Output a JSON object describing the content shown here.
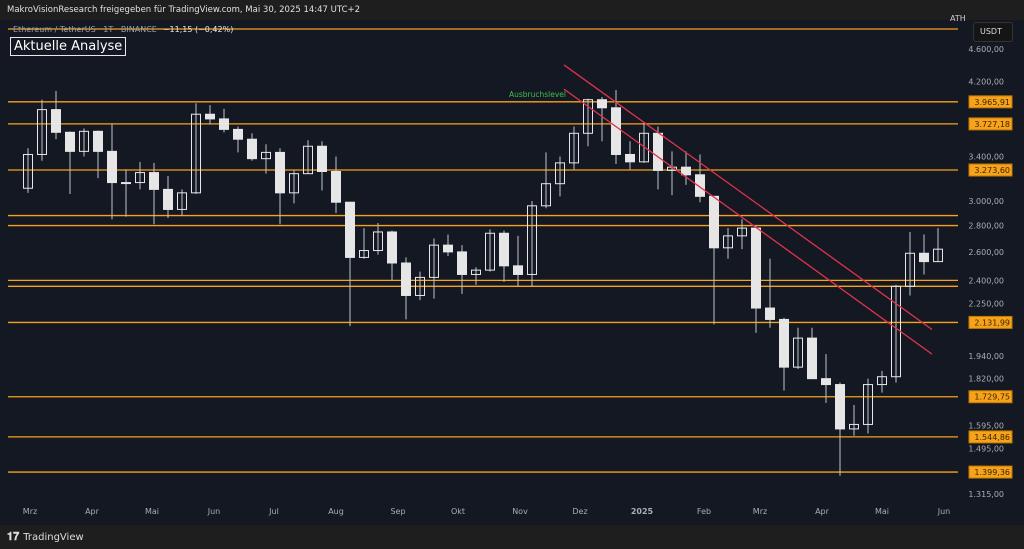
{
  "header": {
    "text": "MakroVisionResearch freigegeben für TradingView.com, Mai 30, 2025 14:47 UTC+2"
  },
  "symbol": {
    "name": "Ethereum / TetherUS · 1T · BINANCE",
    "change": "−11,15 (−0,42%)"
  },
  "annotation_title": "Aktuelle Analyse",
  "currency": "USDT",
  "ath_label": "ATH",
  "footer": {
    "brand": "TradingView",
    "logo": "17"
  },
  "colors": {
    "background": "#141823",
    "level": "#f7a21b",
    "trendline": "#e0334a",
    "candle": "#e6e6e6",
    "annotation_green": "#3fbf4f"
  },
  "chart_data": {
    "type": "candlestick",
    "scale": "log",
    "ylim": [
      1260,
      4900
    ],
    "x_ticks": [
      {
        "label": "Mrz",
        "date": "2024-03-01"
      },
      {
        "label": "Apr",
        "date": "2024-04-01"
      },
      {
        "label": "Mai",
        "date": "2024-05-01"
      },
      {
        "label": "Jun",
        "date": "2024-06-01"
      },
      {
        "label": "Jul",
        "date": "2024-07-01"
      },
      {
        "label": "Aug",
        "date": "2024-08-01"
      },
      {
        "label": "Sep",
        "date": "2024-09-01"
      },
      {
        "label": "Okt",
        "date": "2024-10-01"
      },
      {
        "label": "Nov",
        "date": "2024-11-01"
      },
      {
        "label": "Dez",
        "date": "2024-12-01"
      },
      {
        "label": "2025",
        "date": "2025-01-01"
      },
      {
        "label": "Feb",
        "date": "2025-02-01"
      },
      {
        "label": "Mrz",
        "date": "2025-03-01"
      },
      {
        "label": "Apr",
        "date": "2025-04-01"
      },
      {
        "label": "Mai",
        "date": "2025-05-01"
      },
      {
        "label": "Jun",
        "date": "2025-06-01"
      }
    ],
    "y_ticks": [
      {
        "v": 4600,
        "label": "4.600,00"
      },
      {
        "v": 4200,
        "label": "4.200,00"
      },
      {
        "v": 3400,
        "label": "3.400,00"
      },
      {
        "v": 3000,
        "label": "3.000,00"
      },
      {
        "v": 2800,
        "label": "2.800,00"
      },
      {
        "v": 2600,
        "label": "2.600,00"
      },
      {
        "v": 2400,
        "label": "2.400,00"
      },
      {
        "v": 2250,
        "label": "2.250,00"
      },
      {
        "v": 1940,
        "label": "1.940,00"
      },
      {
        "v": 1820,
        "label": "1.820,00"
      },
      {
        "v": 1595,
        "label": "1.595,00"
      },
      {
        "v": 1495,
        "label": "1.495,00"
      },
      {
        "v": 1315,
        "label": "1.315,00"
      }
    ],
    "levels": [
      {
        "v": 4868,
        "label": ""
      },
      {
        "v": 3965.91,
        "label": "3.965,91"
      },
      {
        "v": 3727.18,
        "label": "3.727,18"
      },
      {
        "v": 3273.6,
        "label": "3.273,60"
      },
      {
        "v": 2880,
        "label": ""
      },
      {
        "v": 2800,
        "label": ""
      },
      {
        "v": 2400,
        "label": ""
      },
      {
        "v": 2360,
        "label": ""
      },
      {
        "v": 2131.99,
        "label": "2.131,99"
      },
      {
        "v": 1729.75,
        "label": "1.729,75"
      },
      {
        "v": 1544.86,
        "label": "1.544,86"
      },
      {
        "v": 1399.36,
        "label": "1.399,36"
      }
    ],
    "level_annotation": {
      "text": "Ausbruchslevel",
      "v": 3965.91,
      "date": "2024-10-27"
    },
    "trendlines": [
      {
        "from": {
          "date": "2024-11-23",
          "v": 4400
        },
        "to": {
          "date": "2025-05-26",
          "v": 2090
        }
      },
      {
        "from": {
          "date": "2024-11-23",
          "v": 4110
        },
        "to": {
          "date": "2025-05-26",
          "v": 1950
        }
      }
    ],
    "week_start": "2024-02-26",
    "ohlc": [
      [
        3110,
        3480,
        3070,
        3420
      ],
      [
        3420,
        3990,
        3360,
        3880
      ],
      [
        3880,
        4090,
        3570,
        3640
      ],
      [
        3640,
        3650,
        3060,
        3450
      ],
      [
        3450,
        3680,
        3400,
        3650
      ],
      [
        3650,
        3660,
        3200,
        3450
      ],
      [
        3450,
        3730,
        2850,
        3160
      ],
      [
        3160,
        3280,
        2870,
        3160
      ],
      [
        3160,
        3350,
        3100,
        3250
      ],
      [
        3250,
        3340,
        2810,
        3100
      ],
      [
        3100,
        3220,
        2860,
        2930
      ],
      [
        2930,
        3100,
        2880,
        3070
      ],
      [
        3070,
        3950,
        3060,
        3830
      ],
      [
        3830,
        3930,
        3720,
        3780
      ],
      [
        3780,
        3890,
        3640,
        3670
      ],
      [
        3670,
        3700,
        3440,
        3570
      ],
      [
        3570,
        3630,
        3360,
        3380
      ],
      [
        3380,
        3520,
        3240,
        3440
      ],
      [
        3440,
        3480,
        2810,
        3070
      ],
      [
        3070,
        3270,
        2980,
        3240
      ],
      [
        3240,
        3560,
        3240,
        3500
      ],
      [
        3500,
        3550,
        3090,
        3260
      ],
      [
        3260,
        3400,
        2900,
        2990
      ],
      [
        2990,
        2990,
        2110,
        2560
      ],
      [
        2560,
        2780,
        2550,
        2610
      ],
      [
        2610,
        2820,
        2580,
        2750
      ],
      [
        2750,
        2760,
        2400,
        2520
      ],
      [
        2520,
        2560,
        2150,
        2300
      ],
      [
        2300,
        2460,
        2270,
        2420
      ],
      [
        2420,
        2700,
        2280,
        2650
      ],
      [
        2650,
        2730,
        2570,
        2600
      ],
      [
        2600,
        2650,
        2310,
        2440
      ],
      [
        2440,
        2490,
        2370,
        2470
      ],
      [
        2470,
        2770,
        2460,
        2740
      ],
      [
        2740,
        2760,
        2390,
        2500
      ],
      [
        2500,
        2720,
        2360,
        2440
      ],
      [
        2440,
        3000,
        2360,
        2960
      ],
      [
        2960,
        3440,
        2940,
        3150
      ],
      [
        3150,
        3400,
        3040,
        3340
      ],
      [
        3340,
        3700,
        3280,
        3630
      ],
      [
        3630,
        4000,
        3500,
        3990
      ],
      [
        3990,
        4020,
        3550,
        3900
      ],
      [
        3900,
        4100,
        3330,
        3420
      ],
      [
        3420,
        3550,
        3280,
        3350
      ],
      [
        3350,
        3740,
        3340,
        3630
      ],
      [
        3630,
        3700,
        3100,
        3270
      ],
      [
        3270,
        3450,
        3050,
        3300
      ],
      [
        3300,
        3450,
        3140,
        3230
      ],
      [
        3230,
        3420,
        2990,
        3040
      ],
      [
        3040,
        3040,
        2120,
        2630
      ],
      [
        2630,
        2780,
        2550,
        2720
      ],
      [
        2720,
        2850,
        2620,
        2780
      ],
      [
        2780,
        2800,
        2070,
        2220
      ],
      [
        2220,
        2550,
        2100,
        2150
      ],
      [
        2150,
        2160,
        1760,
        1880
      ],
      [
        1880,
        2100,
        1870,
        2040
      ],
      [
        2040,
        2100,
        1820,
        1820
      ],
      [
        1820,
        1950,
        1700,
        1790
      ],
      [
        1790,
        1800,
        1385,
        1580
      ],
      [
        1580,
        1690,
        1550,
        1600
      ],
      [
        1600,
        1820,
        1560,
        1790
      ],
      [
        1790,
        1860,
        1750,
        1830
      ],
      [
        1830,
        2370,
        1800,
        2360
      ],
      [
        2360,
        2750,
        2300,
        2590
      ],
      [
        2590,
        2730,
        2440,
        2530
      ],
      [
        2530,
        2780,
        2530,
        2620
      ]
    ]
  }
}
